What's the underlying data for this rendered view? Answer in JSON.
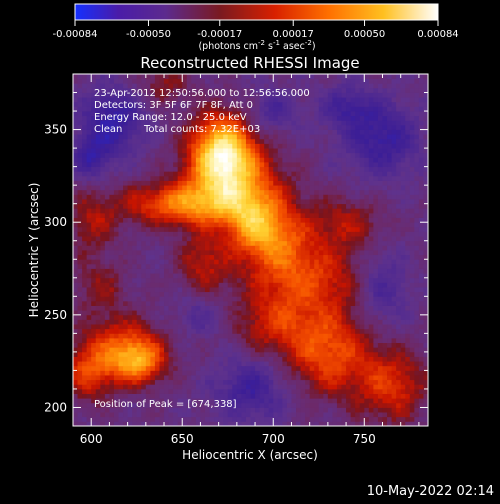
{
  "chart_data": {
    "type": "heatmap",
    "title": "Reconstructed RHESSI Image",
    "xlabel": "Heliocentric X (arcsec)",
    "ylabel": "Heliocentric Y (arcsec)",
    "xlim": [
      590,
      785
    ],
    "ylim": [
      190,
      380
    ],
    "xticks": [
      600,
      650,
      700,
      750
    ],
    "yticks": [
      200,
      250,
      300,
      350
    ],
    "colorbar": {
      "range": [
        -0.00084,
        0.00084
      ],
      "tick_values": [
        -0.00084,
        -0.0005,
        -0.00017,
        0.00017,
        0.0005,
        0.00084
      ],
      "tick_labels": [
        "-0.00084",
        "-0.00050",
        "-0.00017",
        "0.00017",
        "0.00050",
        "0.00084"
      ],
      "unit_label": "(photons cm",
      "unit_exp1": "-2",
      "unit_mid": " s",
      "unit_exp2": "-1",
      "unit_mid2": " asec",
      "unit_exp3": "-2",
      "unit_end": ")"
    },
    "annotations": {
      "time_range": "23-Apr-2012 12:50:56.000 to 12:56:56.000",
      "detectors": "Detectors: 3F 5F 6F 7F 8F, Att 0",
      "energy": "Energy Range: 12.0 - 25.0 keV",
      "clean": "Clean",
      "total_counts": "Total counts: 7.32E+03",
      "peak": "Position of Peak = [674,338]"
    },
    "footer_date": "10-May-2022 02:14",
    "peak_position": [
      674,
      338
    ],
    "blobs": [
      {
        "x": 672,
        "y": 338,
        "sx": 12,
        "sy": 14,
        "amp": 1.05
      },
      {
        "x": 680,
        "y": 320,
        "sx": 18,
        "sy": 14,
        "amp": 0.55
      },
      {
        "x": 650,
        "y": 310,
        "sx": 22,
        "sy": 8,
        "amp": 0.65
      },
      {
        "x": 700,
        "y": 292,
        "sx": 14,
        "sy": 14,
        "amp": 0.55
      },
      {
        "x": 688,
        "y": 300,
        "sx": 10,
        "sy": 10,
        "amp": 0.4
      },
      {
        "x": 720,
        "y": 270,
        "sx": 22,
        "sy": 14,
        "amp": 0.45
      },
      {
        "x": 662,
        "y": 278,
        "sx": 10,
        "sy": 12,
        "amp": 0.35
      },
      {
        "x": 616,
        "y": 232,
        "sx": 16,
        "sy": 12,
        "amp": 0.5
      },
      {
        "x": 626,
        "y": 225,
        "sx": 10,
        "sy": 8,
        "amp": 0.55
      },
      {
        "x": 598,
        "y": 218,
        "sx": 10,
        "sy": 10,
        "amp": 0.4
      },
      {
        "x": 730,
        "y": 230,
        "sx": 16,
        "sy": 16,
        "amp": 0.55
      },
      {
        "x": 765,
        "y": 212,
        "sx": 14,
        "sy": 14,
        "amp": 0.45
      },
      {
        "x": 700,
        "y": 245,
        "sx": 16,
        "sy": 12,
        "amp": 0.35
      },
      {
        "x": 740,
        "y": 300,
        "sx": 14,
        "sy": 10,
        "amp": 0.3
      },
      {
        "x": 600,
        "y": 300,
        "sx": 10,
        "sy": 12,
        "amp": 0.3
      },
      {
        "x": 605,
        "y": 265,
        "sx": 10,
        "sy": 10,
        "amp": 0.25
      },
      {
        "x": 640,
        "y": 375,
        "sx": 10,
        "sy": 8,
        "amp": 0.25
      }
    ],
    "depressions": [
      {
        "x": 612,
        "y": 355,
        "sx": 12,
        "sy": 12,
        "amp": -0.45
      },
      {
        "x": 600,
        "y": 335,
        "sx": 8,
        "sy": 8,
        "amp": -0.35
      },
      {
        "x": 760,
        "y": 345,
        "sx": 14,
        "sy": 14,
        "amp": -0.4
      },
      {
        "x": 740,
        "y": 362,
        "sx": 10,
        "sy": 8,
        "amp": -0.3
      },
      {
        "x": 688,
        "y": 210,
        "sx": 14,
        "sy": 12,
        "amp": -0.35
      },
      {
        "x": 760,
        "y": 265,
        "sx": 10,
        "sy": 14,
        "amp": -0.3
      },
      {
        "x": 700,
        "y": 360,
        "sx": 10,
        "sy": 8,
        "amp": -0.25
      },
      {
        "x": 660,
        "y": 250,
        "sx": 10,
        "sy": 8,
        "amp": -0.2
      }
    ],
    "baseline": -0.18
  }
}
